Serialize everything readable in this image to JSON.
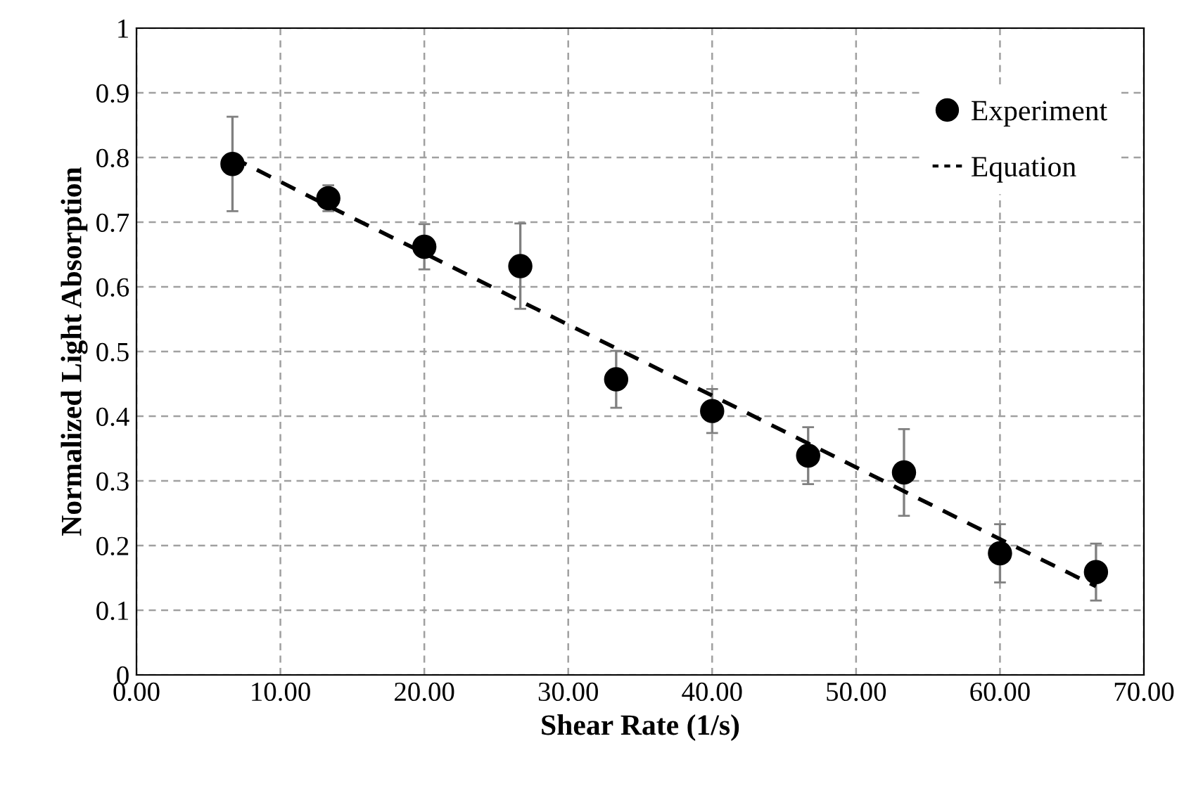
{
  "chart_data": {
    "type": "scatter",
    "xlabel": "Shear Rate (1/s)",
    "ylabel": "Normalized Light Absorption",
    "xlim": [
      0,
      70
    ],
    "ylim": [
      0,
      1
    ],
    "xticks": [
      {
        "value": 0,
        "label": "0.00"
      },
      {
        "value": 10,
        "label": "10.00"
      },
      {
        "value": 20,
        "label": "20.00"
      },
      {
        "value": 30,
        "label": "30.00"
      },
      {
        "value": 40,
        "label": "40.00"
      },
      {
        "value": 50,
        "label": "50.00"
      },
      {
        "value": 60,
        "label": "60.00"
      },
      {
        "value": 70,
        "label": "70.00"
      }
    ],
    "yticks": [
      0,
      0.1,
      0.2,
      0.3,
      0.4,
      0.5,
      0.6,
      0.7,
      0.8,
      0.9,
      1
    ],
    "grid": true,
    "legend": "top right",
    "series": [
      {
        "name": "Experiment",
        "color": "#000000",
        "marker": "circle",
        "x": [
          6.67,
          13.33,
          20,
          26.67,
          33.33,
          40,
          46.67,
          53.33,
          60,
          66.67
        ],
        "values": [
          0.79,
          0.737,
          0.662,
          0.632,
          0.457,
          0.408,
          0.339,
          0.313,
          0.188,
          0.159
        ],
        "errors": [
          0.073,
          0.02,
          0.035,
          0.066,
          0.044,
          0.034,
          0.044,
          0.067,
          0.045,
          0.044
        ]
      },
      {
        "name": "Equation",
        "type": "line",
        "color": "#000000",
        "line_style": "dashed",
        "marker": "none",
        "x": [
          6.67,
          13.33,
          20,
          26.67,
          33.33,
          40,
          46.67,
          53.33,
          60,
          66.67
        ],
        "values": [
          0.8,
          0.725,
          0.652,
          0.578,
          0.505,
          0.432,
          0.358,
          0.284,
          0.21,
          0.137
        ]
      }
    ]
  }
}
